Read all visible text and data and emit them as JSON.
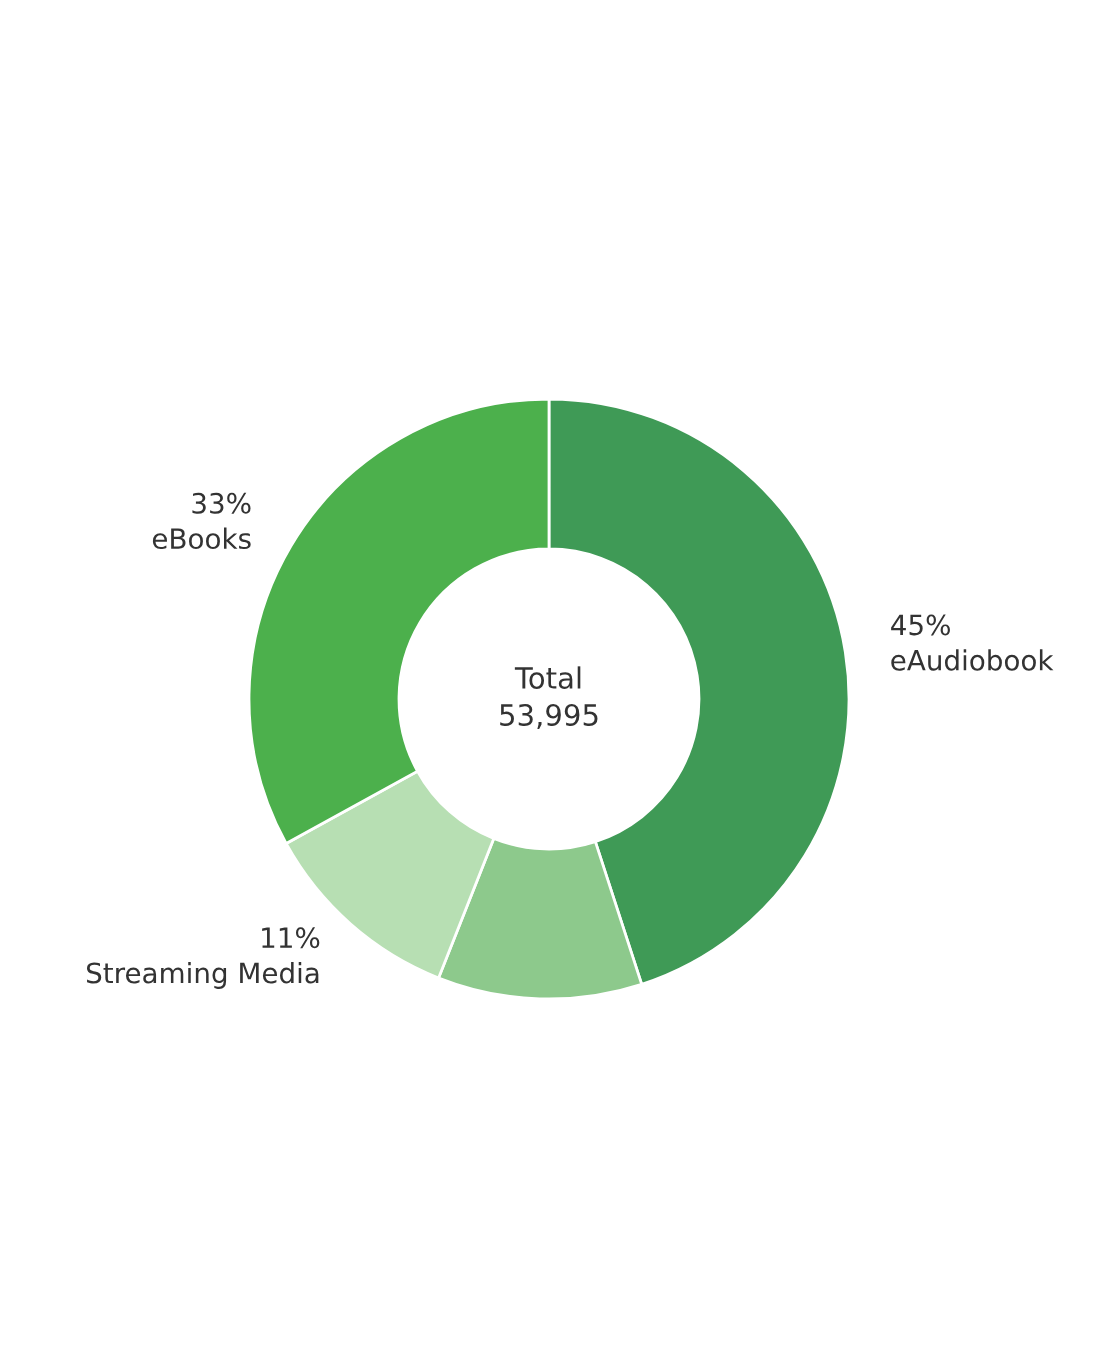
{
  "chart_data": {
    "type": "donut",
    "categories": [
      "eAudiobook",
      null,
      "Streaming Media",
      "eBooks"
    ],
    "values": [
      45,
      11,
      11,
      33
    ],
    "colors": [
      "#3f9a56",
      "#8dc98c",
      "#b7dfb3",
      "#4cb04c"
    ],
    "value_labels": [
      "45%",
      null,
      "11%",
      "33%"
    ],
    "annotations": [
      "Total",
      "53,995"
    ]
  }
}
